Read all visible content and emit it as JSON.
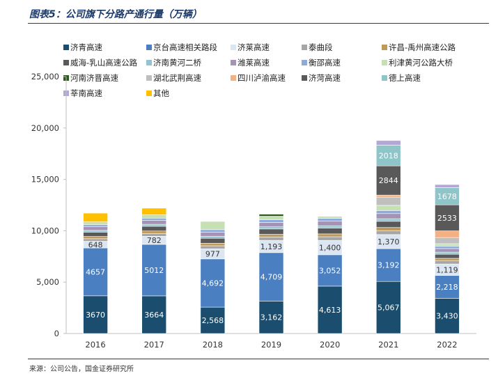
{
  "title": "图表5：公司旗下分路产通行量（万辆）",
  "source": "来源：公司公告，国金证券研究所",
  "chart_data": {
    "type": "bar",
    "stacked": true,
    "categories": [
      "2016",
      "2017",
      "2018",
      "2019",
      "2020",
      "2021",
      "2022"
    ],
    "ylim": [
      0,
      25000
    ],
    "yticks": [
      "0",
      "5,000",
      "10,000",
      "15,000",
      "20,000",
      "25,000"
    ],
    "ytick_values": [
      0,
      5000,
      10000,
      15000,
      20000,
      25000
    ],
    "grid": false,
    "legend_position": "top",
    "series": [
      {
        "name": "济青高速",
        "color": "#1b4e6e",
        "values": [
          3670,
          3664,
          2568,
          3162,
          4613,
          5067,
          3430
        ],
        "labels": [
          "3670",
          "3664",
          "2,568",
          "3,162",
          "4,613",
          "5,067",
          "3,430"
        ]
      },
      {
        "name": "京台高速相关路段",
        "color": "#4a7fc1",
        "values": [
          4657,
          5012,
          4692,
          4709,
          3052,
          3192,
          2218
        ],
        "labels": [
          "4657",
          "5012",
          "4,692",
          "4,709",
          "3,052",
          "3,192",
          "2,218"
        ]
      },
      {
        "name": "济莱高速",
        "color": "#dce6f2",
        "values": [
          648,
          782,
          977,
          1193,
          1400,
          1370,
          1119
        ],
        "labels": [
          "648",
          "782",
          "977",
          "1,193",
          "1,400",
          "1,370",
          "1,119"
        ]
      },
      {
        "name": "泰曲段",
        "color": "#a6a6a6",
        "values": [
          250,
          280,
          300,
          320,
          350,
          380,
          300
        ]
      },
      {
        "name": "许昌-禹州高速公路",
        "color": "#c09a5b",
        "values": [
          220,
          240,
          250,
          270,
          280,
          310,
          250
        ]
      },
      {
        "name": "威海-乳山高速公路",
        "color": "#595959",
        "values": [
          420,
          460,
          480,
          520,
          560,
          600,
          400
        ]
      },
      {
        "name": "济南黄河二桥",
        "color": "#94c4cf",
        "values": [
          170,
          190,
          200,
          210,
          230,
          250,
          200
        ]
      },
      {
        "name": "潍莱高速",
        "color": "#a593b5",
        "values": [
          350,
          380,
          400,
          430,
          450,
          500,
          350
        ]
      },
      {
        "name": "衡邵高速",
        "color": "#8eaadb",
        "values": [
          200,
          220,
          240,
          250,
          270,
          300,
          220
        ]
      },
      {
        "name": "利津黄河公路大桥",
        "color": "#c6e0b4",
        "values": [
          280,
          320,
          800,
          350,
          200,
          500,
          250
        ]
      },
      {
        "name": "河南济晋高速",
        "color": "#2d5a1b",
        "values": [
          0,
          0,
          0,
          200,
          0,
          0,
          0
        ]
      },
      {
        "name": "湖北武荆高速",
        "color": "#bfbfbf",
        "values": [
          0,
          0,
          0,
          0,
          0,
          800,
          600
        ]
      },
      {
        "name": "四川泸渝高速",
        "color": "#f4b183",
        "values": [
          0,
          0,
          0,
          0,
          0,
          200,
          650
        ]
      },
      {
        "name": "济菏高速",
        "color": "#595959",
        "values": [
          0,
          0,
          0,
          0,
          0,
          2844,
          2533
        ],
        "labels": [
          "",
          "",
          "",
          "",
          "",
          "2844",
          "2533"
        ]
      },
      {
        "name": "德上高速",
        "color": "#8ec5c9",
        "values": [
          0,
          0,
          0,
          0,
          0,
          2018,
          1678
        ],
        "labels": [
          "",
          "",
          "",
          "",
          "",
          "2018",
          "1678"
        ]
      },
      {
        "name": "莘南高速",
        "color": "#b4a7d6",
        "values": [
          0,
          0,
          0,
          0,
          0,
          450,
          300
        ]
      },
      {
        "name": "其他",
        "color": "#ffc000",
        "values": [
          850,
          650,
          0,
          0,
          0,
          0,
          0
        ]
      }
    ]
  }
}
